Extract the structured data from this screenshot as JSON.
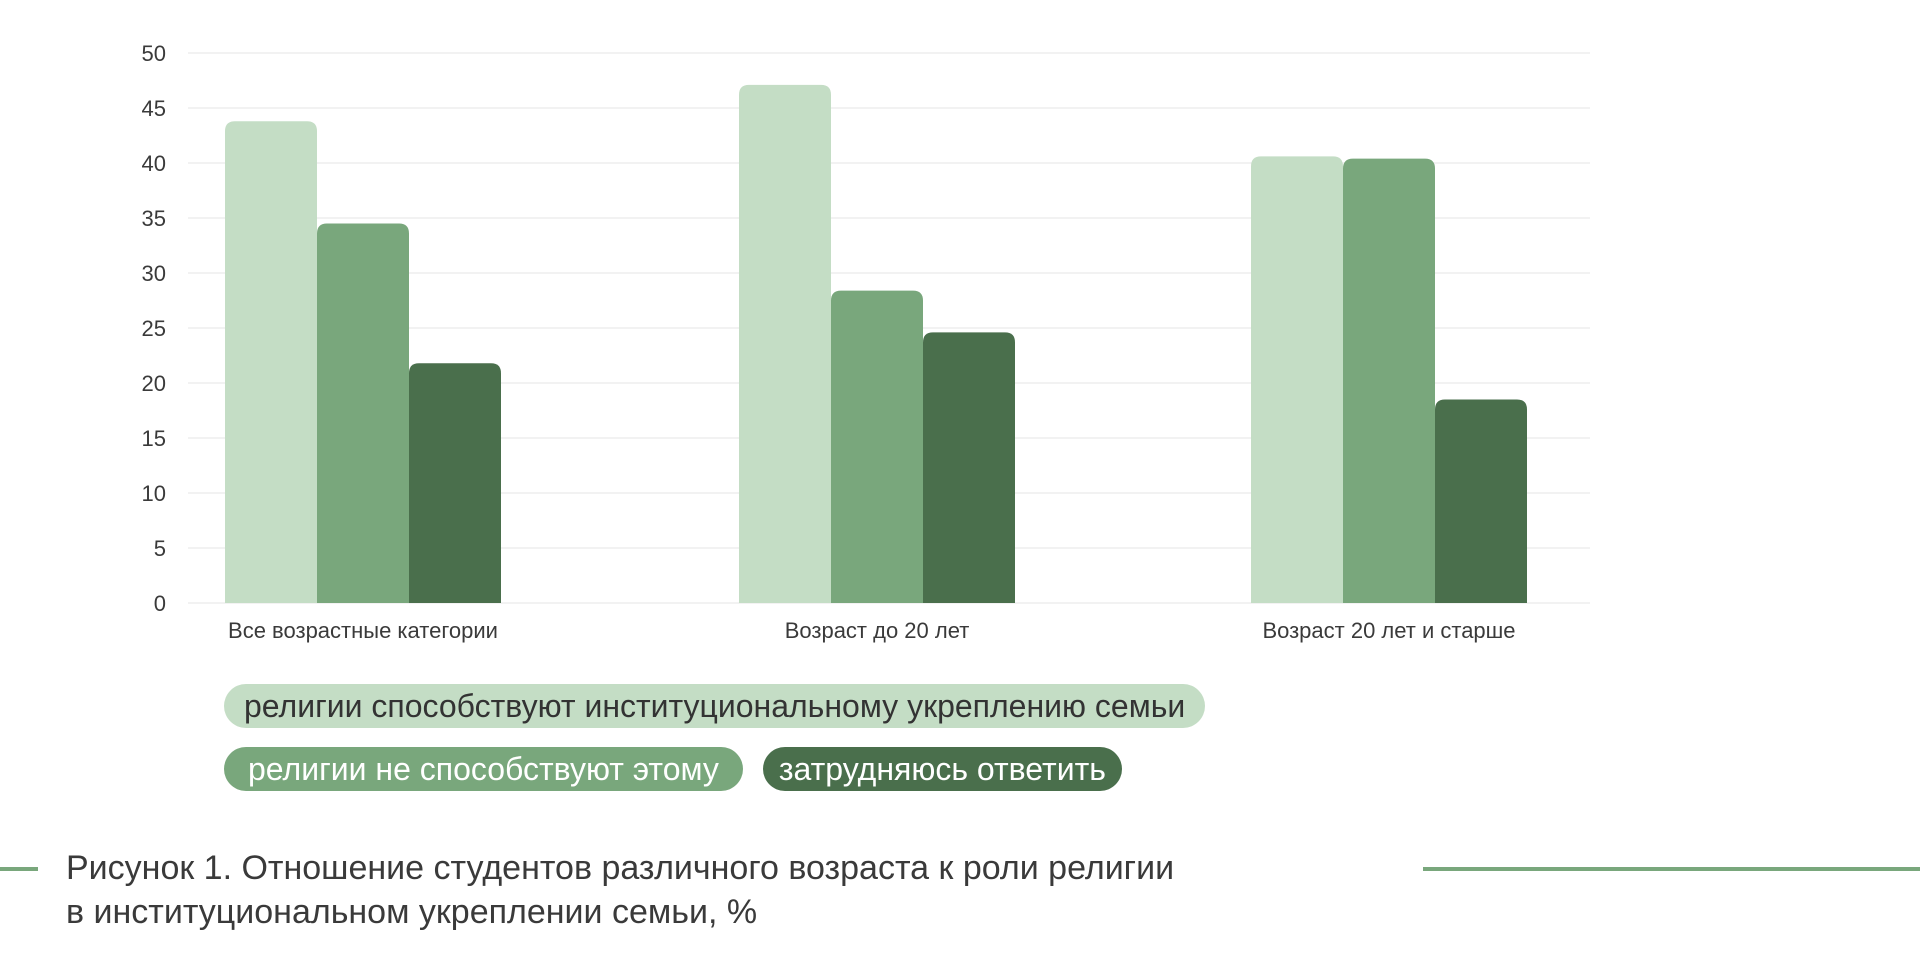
{
  "chart_data": {
    "type": "bar",
    "categories": [
      "Все возрастные категории",
      "Возраст до 20 лет",
      "Возраст 20 лет и старше"
    ],
    "series": [
      {
        "name": "религии способствуют институциональному укреплению семьи",
        "values": [
          43.8,
          47.1,
          40.6
        ],
        "color": "#c4ddc5"
      },
      {
        "name": "религии не способствуют этому",
        "values": [
          34.5,
          28.4,
          40.4
        ],
        "color": "#79a77c"
      },
      {
        "name": "затрудняюсь ответить",
        "values": [
          21.8,
          24.6,
          18.5
        ],
        "color": "#4a6f4c"
      }
    ],
    "y_ticks": [
      "0",
      "5",
      "10",
      "15",
      "20",
      "25",
      "30",
      "35",
      "40",
      "45",
      "50"
    ],
    "ylim": [
      0,
      50
    ],
    "grid": true,
    "legend_position": "bottom"
  },
  "caption": {
    "line1": "Рисунок 1. Отношение студентов различного возраста к роли религии",
    "line2": "в институциональном укреплении семьи, %"
  },
  "colors": {
    "grid": "#e6e6e6",
    "caption_rule": "#79a77c"
  }
}
